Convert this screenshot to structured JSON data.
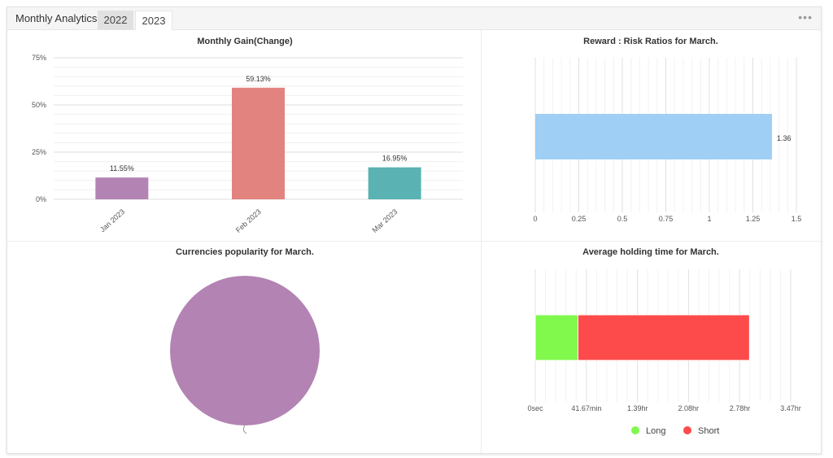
{
  "header": {
    "title": "Monthly Analytics",
    "tabs": [
      {
        "label": "2022",
        "active": false
      },
      {
        "label": "2023",
        "active": true
      }
    ],
    "more_icon": "ellipsis-icon",
    "more_label": "•••"
  },
  "chart_data": [
    {
      "type": "bar",
      "title": "Monthly Gain(Change)",
      "categories": [
        "Jan 2023",
        "Feb 2023",
        "Mar 2023"
      ],
      "values": [
        11.55,
        59.13,
        16.95
      ],
      "value_labels": [
        "11.55%",
        "59.13%",
        "16.95%"
      ],
      "colors": [
        "#b383b3",
        "#e3837f",
        "#5ab3b2"
      ],
      "ylim": [
        0,
        75
      ],
      "yticks": [
        0,
        25,
        50,
        75
      ],
      "ytick_labels": [
        "0%",
        "25%",
        "50%",
        "75%"
      ],
      "grid": true
    },
    {
      "type": "bar",
      "orientation": "horizontal",
      "title": "Reward : Risk Ratios for March.",
      "values": [
        1.36
      ],
      "value_labels": [
        "1.36"
      ],
      "colors": [
        "#9fcff5"
      ],
      "xlim": [
        0,
        1.5
      ],
      "xticks": [
        0,
        0.25,
        0.5,
        0.75,
        1,
        1.25,
        1.5
      ],
      "xtick_labels": [
        "0",
        "0.25",
        "0.5",
        "0.75",
        "1",
        "1.25",
        "1.5"
      ],
      "grid": true
    },
    {
      "type": "pie",
      "title": "Currencies popularity for March.",
      "values": [
        100
      ],
      "colors": [
        "#b383b3"
      ]
    },
    {
      "type": "bar",
      "orientation": "horizontal",
      "stacked": true,
      "title": "Average holding time for March.",
      "unit": "hr",
      "series": [
        {
          "name": "Long",
          "values": [
            0.58
          ],
          "color": "#80f94c"
        },
        {
          "name": "Short",
          "values": [
            2.33
          ],
          "color": "#fd4a4a"
        }
      ],
      "xlim": [
        0,
        3.47
      ],
      "xticks": [
        0,
        0.6945,
        1.39,
        2.08,
        2.78,
        3.47
      ],
      "xtick_labels": [
        "0sec",
        "41.67min",
        "1.39hr",
        "2.08hr",
        "2.78hr",
        "3.47hr"
      ],
      "legend": "bottom",
      "grid": true
    }
  ]
}
